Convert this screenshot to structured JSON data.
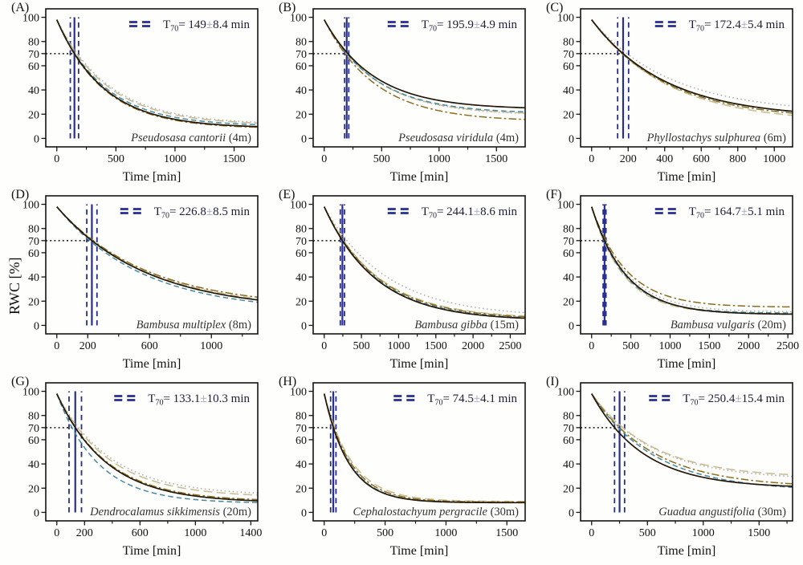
{
  "figure": {
    "ylabel": "RWC [%]",
    "xlabel": "Time [min]",
    "yticks": [
      0,
      20,
      40,
      60,
      70,
      80,
      100
    ],
    "ylim": [
      -7,
      107
    ],
    "y_start": 98,
    "y_threshold": 70,
    "legend_labels": {
      "t_prefix": "T",
      "t_sub": "70",
      "eq": "= ",
      "pm": "±",
      "unit": " min"
    },
    "marker_color": "#272e8e",
    "threshold_line_color": "#111111",
    "frame_color": "#141414",
    "pm_color": "#9aa0b8",
    "text_color": "#20203a",
    "species_color": "#333333",
    "series_styles": [
      {
        "name": "gray-dotted",
        "color": "#b5b2ac",
        "dash": "1.6 3.4",
        "width": 1.6
      },
      {
        "name": "tan-longdash",
        "color": "#c7bb90",
        "dash": "11 5.5",
        "width": 1.5
      },
      {
        "name": "teal-dashed",
        "color": "#458aa0",
        "dash": "6.5 4",
        "width": 1.5
      },
      {
        "name": "olive-dashdot",
        "color": "#8a6d1e",
        "dash": "9.5 3.2 2.6 3.2",
        "width": 1.5
      },
      {
        "name": "black-solid",
        "color": "#231809",
        "dash": "",
        "width": 1.7
      }
    ]
  },
  "chart_data": [
    {
      "type": "line",
      "id": "A",
      "letter": "(A)",
      "species": "Pseudosasa cantorii",
      "height": "(4m)",
      "t70": {
        "value": "149",
        "error": "8.4"
      },
      "t70_min": 149,
      "t70_err_min": 8.4,
      "marker_spread_min": 35,
      "xlim": [
        0,
        1700
      ],
      "xticks": [
        0,
        500,
        1000,
        1500
      ],
      "xminor": [
        250,
        750,
        1250
      ],
      "series": [
        {
          "style": "gray-dotted",
          "k": 1.16,
          "end": 11.5
        },
        {
          "style": "tan-longdash",
          "k": 1.12,
          "end": 11
        },
        {
          "style": "teal-dashed",
          "k": 1.04,
          "end": 10
        },
        {
          "style": "olive-dashdot",
          "k": 0.98,
          "end": 8
        },
        {
          "style": "black-solid",
          "k": 1.0,
          "end": 8.5
        }
      ]
    },
    {
      "type": "line",
      "id": "B",
      "letter": "(B)",
      "species": "Pseudosasa viridula",
      "height": "(4m)",
      "t70": {
        "value": "195.9",
        "error": "4.9"
      },
      "t70_min": 195.9,
      "t70_err_min": 4.9,
      "marker_spread_min": 18,
      "xlim": [
        0,
        1750
      ],
      "xticks": [
        0,
        500,
        1000,
        1500
      ],
      "xminor": [
        250,
        750,
        1250
      ],
      "series": [
        {
          "style": "gray-dotted",
          "k": 1.0,
          "end": 19
        },
        {
          "style": "tan-longdash",
          "k": 1.0,
          "end": 19.5
        },
        {
          "style": "teal-dashed",
          "k": 1.0,
          "end": 20.5
        },
        {
          "style": "olive-dashdot",
          "k": 0.92,
          "end": 14
        },
        {
          "style": "black-solid",
          "k": 1.05,
          "end": 24
        }
      ]
    },
    {
      "type": "line",
      "id": "C",
      "letter": "(C)",
      "species": "Phyllostachys sulphurea",
      "height": "(6m)",
      "t70": {
        "value": "172.4",
        "error": "5.4"
      },
      "t70_min": 172.4,
      "t70_err_min": 5.4,
      "marker_spread_min": 30,
      "xlim": [
        0,
        1100
      ],
      "xticks": [
        0,
        200,
        400,
        600,
        800,
        1000
      ],
      "xminor": [
        100,
        300,
        500,
        700,
        900
      ],
      "series": [
        {
          "style": "gray-dotted",
          "k": 1.12,
          "end": 21
        },
        {
          "style": "tan-longdash",
          "k": 0.96,
          "end": 13
        },
        {
          "style": "teal-dashed",
          "k": 0.99,
          "end": 17
        },
        {
          "style": "olive-dashdot",
          "k": 0.97,
          "end": 15.5
        },
        {
          "style": "black-solid",
          "k": 1.0,
          "end": 17
        }
      ]
    },
    {
      "type": "line",
      "id": "D",
      "letter": "(D)",
      "species": "Bambusa multiplex",
      "height": "(8m)",
      "t70": {
        "value": "226.8",
        "error": "8.5"
      },
      "t70_min": 226.8,
      "t70_err_min": 8.5,
      "marker_spread_min": 33,
      "xlim": [
        0,
        1300
      ],
      "xticks": [
        0,
        200,
        600,
        1000
      ],
      "xminor": [
        400,
        800,
        1200
      ],
      "series": [
        {
          "style": "gray-dotted",
          "k": 1.0,
          "end": 12
        },
        {
          "style": "tan-longdash",
          "k": 1.02,
          "end": 13
        },
        {
          "style": "teal-dashed",
          "k": 0.94,
          "end": 11
        },
        {
          "style": "olive-dashdot",
          "k": 1.04,
          "end": 14.5
        },
        {
          "style": "black-solid",
          "k": 1.0,
          "end": 12
        }
      ]
    },
    {
      "type": "line",
      "id": "E",
      "letter": "(E)",
      "species": "Bambusa gibba",
      "height": "(15m)",
      "t70": {
        "value": "244.1",
        "error": "8.6"
      },
      "t70_min": 244.1,
      "t70_err_min": 8.6,
      "marker_spread_min": 28,
      "xlim": [
        0,
        2700
      ],
      "xticks": [
        0,
        500,
        1000,
        1500,
        2000,
        2500
      ],
      "xminor": [
        250,
        750,
        1250,
        1750,
        2250
      ],
      "series": [
        {
          "style": "gray-dotted",
          "k": 1.25,
          "end": 7
        },
        {
          "style": "tan-longdash",
          "k": 1.07,
          "end": 5.5
        },
        {
          "style": "teal-dashed",
          "k": 1.02,
          "end": 4.5
        },
        {
          "style": "olive-dashdot",
          "k": 1.05,
          "end": 5
        },
        {
          "style": "black-solid",
          "k": 1.0,
          "end": 4
        }
      ]
    },
    {
      "type": "line",
      "id": "F",
      "letter": "(F)",
      "species": "Bambusa vulgaris",
      "height": "(20m)",
      "t70": {
        "value": "164.7",
        "error": "5.1"
      },
      "t70_min": 164.7,
      "t70_err_min": 5.1,
      "marker_spread_min": 18,
      "xlim": [
        0,
        2560
      ],
      "xticks": [
        0,
        500,
        1000,
        1500,
        2000,
        2500
      ],
      "xminor": [
        250,
        750,
        1250,
        1750,
        2250
      ],
      "series": [
        {
          "style": "gray-dotted",
          "k": 1.05,
          "end": 11
        },
        {
          "style": "tan-longdash",
          "k": 0.93,
          "end": 9.5
        },
        {
          "style": "teal-dashed",
          "k": 0.96,
          "end": 10
        },
        {
          "style": "olive-dashdot",
          "k": 1.1,
          "end": 15
        },
        {
          "style": "black-solid",
          "k": 1.0,
          "end": 9
        }
      ]
    },
    {
      "type": "line",
      "id": "G",
      "letter": "(G)",
      "species": "Dendrocalamus sikkimensis",
      "height": "(20m)",
      "t70": {
        "value": "133.1",
        "error": "10.3"
      },
      "t70_min": 133.1,
      "t70_err_min": 10.3,
      "marker_spread_min": 45,
      "xlim": [
        0,
        1450
      ],
      "xticks": [
        0,
        200,
        600,
        1000,
        1400
      ],
      "xminor": [
        400,
        800,
        1200
      ],
      "series": [
        {
          "style": "gray-dotted",
          "k": 1.18,
          "end": 14
        },
        {
          "style": "tan-longdash",
          "k": 1.12,
          "end": 12.5
        },
        {
          "style": "teal-dashed",
          "k": 0.82,
          "end": 7.5
        },
        {
          "style": "olive-dashdot",
          "k": 1.02,
          "end": 9
        },
        {
          "style": "black-solid",
          "k": 1.0,
          "end": 8
        }
      ]
    },
    {
      "type": "line",
      "id": "H",
      "letter": "(H)",
      "species": "Cephalostachyum pergracile",
      "height": "(30m)",
      "t70": {
        "value": "74.5",
        "error": "4.1"
      },
      "t70_min": 74.5,
      "t70_err_min": 4.1,
      "marker_spread_min": 22,
      "xlim": [
        0,
        1650
      ],
      "xticks": [
        0,
        500,
        1000,
        1500
      ],
      "xminor": [
        250,
        750,
        1250
      ],
      "series": [
        {
          "style": "gray-dotted",
          "k": 1.05,
          "end": 8.5
        },
        {
          "style": "tan-longdash",
          "k": 1.15,
          "end": 9
        },
        {
          "style": "teal-dashed",
          "k": 1.02,
          "end": 8
        },
        {
          "style": "olive-dashdot",
          "k": 1.08,
          "end": 8.5
        },
        {
          "style": "black-solid",
          "k": 1.0,
          "end": 8
        }
      ]
    },
    {
      "type": "line",
      "id": "I",
      "letter": "(I)",
      "species": "Guadua angustifolia",
      "height": "(30m)",
      "t70": {
        "value": "250.4",
        "error": "15.4"
      },
      "t70_min": 250.4,
      "t70_err_min": 15.4,
      "marker_spread_min": 45,
      "xlim": [
        0,
        1800
      ],
      "xticks": [
        0,
        500,
        1000,
        1500
      ],
      "xminor": [
        250,
        750,
        1250,
        1750
      ],
      "series": [
        {
          "style": "gray-dotted",
          "k": 1.1,
          "end": 27
        },
        {
          "style": "tan-longdash",
          "k": 1.12,
          "end": 28.5
        },
        {
          "style": "teal-dashed",
          "k": 0.95,
          "end": 17.5
        },
        {
          "style": "olive-dashdot",
          "k": 1.0,
          "end": 20.5
        },
        {
          "style": "black-solid",
          "k": 0.82,
          "end": 20
        }
      ]
    }
  ]
}
